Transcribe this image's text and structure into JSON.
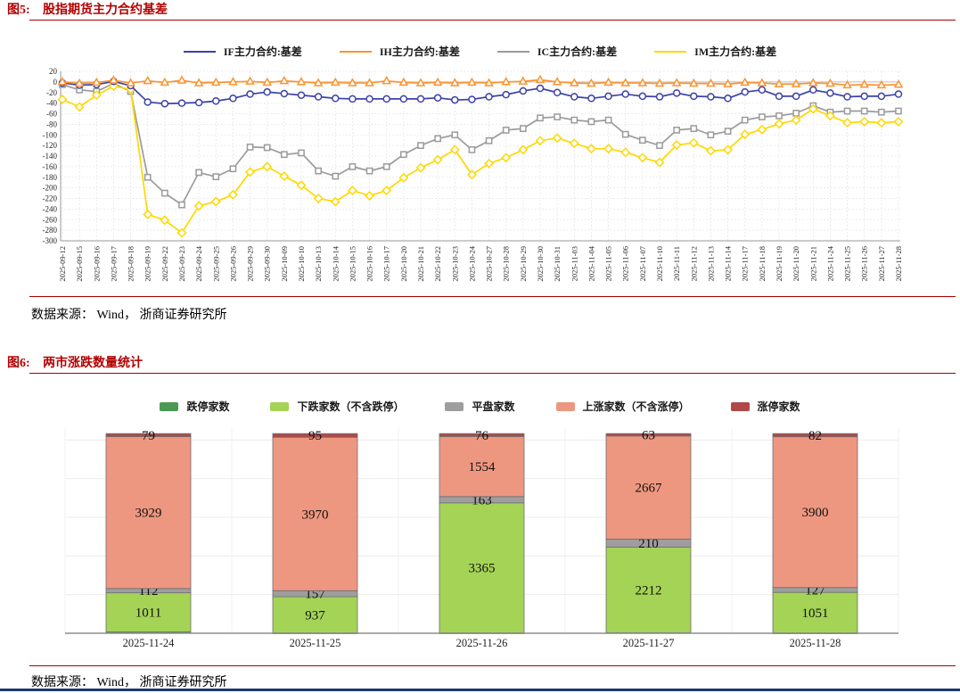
{
  "page": {
    "colors": {
      "title_red": "#b30000",
      "rule_red": "#a80000",
      "footer_navy": "#1e3a6d",
      "grid_light": "#e6e6e6",
      "axis_gray": "#9a9a9a"
    }
  },
  "figures": [
    {
      "label": "图5:",
      "title": "股指期货主力合约基差",
      "source": "数据来源： Wind， 浙商证券研究所"
    },
    {
      "label": "图6:",
      "title": "两市涨跌数量统计",
      "source": "数据来源： Wind， 浙商证券研究所"
    }
  ],
  "chart_data": [
    {
      "type": "line",
      "title": "股指期货主力合约基差",
      "legend_position": "top",
      "grid": true,
      "ylim": [
        -300,
        20
      ],
      "ytick_step": 20,
      "x": [
        "2025-09-12",
        "2025-09-15",
        "2025-09-16",
        "2025-09-17",
        "2025-09-18",
        "2025-09-19",
        "2025-09-22",
        "2025-09-23",
        "2025-09-24",
        "2025-09-25",
        "2025-09-26",
        "2025-09-29",
        "2025-09-30",
        "2025-10-09",
        "2025-10-10",
        "2025-10-13",
        "2025-10-14",
        "2025-10-15",
        "2025-10-16",
        "2025-10-17",
        "2025-10-20",
        "2025-10-21",
        "2025-10-22",
        "2025-10-23",
        "2025-10-24",
        "2025-10-27",
        "2025-10-28",
        "2025-10-29",
        "2025-10-30",
        "2025-10-31",
        "2025-11-03",
        "2025-11-04",
        "2025-11-05",
        "2025-11-06",
        "2025-11-07",
        "2025-11-10",
        "2025-11-11",
        "2025-11-12",
        "2025-11-13",
        "2025-11-14",
        "2025-11-17",
        "2025-11-18",
        "2025-11-19",
        "2025-11-20",
        "2025-11-21",
        "2025-11-24",
        "2025-11-25",
        "2025-11-26",
        "2025-11-27",
        "2025-11-28"
      ],
      "series": [
        {
          "name": "IF主力合约:基差",
          "color": "#3c42a6",
          "marker": "circle",
          "values": [
            -2,
            -6,
            -5,
            1,
            -7,
            -38,
            -41,
            -40,
            -39,
            -36,
            -31,
            -23,
            -19,
            -22,
            -25,
            -28,
            -31,
            -32,
            -32,
            -32,
            -32,
            -32,
            -30,
            -34,
            -33,
            -28,
            -24,
            -17,
            -12,
            -20,
            -28,
            -31,
            -27,
            -23,
            -27,
            -28,
            -21,
            -27,
            -28,
            -31,
            -19,
            -15,
            -27,
            -27,
            -15,
            -21,
            -28,
            -27,
            -27,
            -23
          ]
        },
        {
          "name": "IH主力合约:基差",
          "color": "#fb9431",
          "marker": "triangle",
          "values": [
            0,
            -3,
            -1,
            3,
            -2,
            2,
            -1,
            3,
            -2,
            -1,
            0,
            1,
            -1,
            2,
            0,
            -2,
            -1,
            -2,
            -2,
            2,
            -1,
            -2,
            -1,
            -2,
            -1,
            -2,
            0,
            1,
            4,
            0,
            -2,
            -3,
            -1,
            -2,
            -2,
            -3,
            -2,
            -3,
            -3,
            -4,
            -1,
            -2,
            -4,
            -4,
            -2,
            -3,
            -6,
            -5,
            -6,
            -5
          ]
        },
        {
          "name": "IC主力合约:基差",
          "color": "#9b9b9b",
          "marker": "square",
          "values": [
            -5,
            -15,
            -18,
            -3,
            -18,
            -180,
            -210,
            -232,
            -171,
            -179,
            -164,
            -123,
            -124,
            -137,
            -134,
            -168,
            -178,
            -160,
            -168,
            -160,
            -137,
            -120,
            -107,
            -100,
            -128,
            -111,
            -91,
            -88,
            -68,
            -66,
            -72,
            -75,
            -72,
            -99,
            -110,
            -120,
            -91,
            -88,
            -100,
            -93,
            -72,
            -66,
            -64,
            -59,
            -45,
            -57,
            -55,
            -55,
            -57,
            -55
          ]
        },
        {
          "name": "IM主力合约:基差",
          "color": "#ffd800",
          "marker": "diamond",
          "values": [
            -33,
            -47,
            -25,
            -8,
            -14,
            -250,
            -261,
            -285,
            -234,
            -226,
            -213,
            -170,
            -160,
            -178,
            -195,
            -220,
            -226,
            -205,
            -215,
            -205,
            -181,
            -162,
            -147,
            -128,
            -175,
            -154,
            -143,
            -128,
            -111,
            -106,
            -116,
            -126,
            -126,
            -133,
            -143,
            -152,
            -119,
            -115,
            -130,
            -128,
            -99,
            -90,
            -79,
            -72,
            -51,
            -64,
            -77,
            -75,
            -77,
            -75
          ]
        }
      ]
    },
    {
      "type": "bar",
      "subtype": "stacked",
      "title": "两市涨跌数量统计",
      "legend_position": "top",
      "ylim": [
        0,
        6000
      ],
      "gridline_step": 1000,
      "value_labels": "on-segments",
      "categories": [
        "2025-11-24",
        "2025-11-25",
        "2025-11-26",
        "2025-11-27",
        "2025-11-28"
      ],
      "series": [
        {
          "name": "跌停家数",
          "color": "#4a9a55",
          "values": [
            35,
            7,
            8,
            14,
            6
          ]
        },
        {
          "name": "下跌家数（不含跌停）",
          "color": "#a5d356",
          "values": [
            1011,
            937,
            3365,
            2212,
            1051
          ]
        },
        {
          "name": "平盘家数",
          "color": "#9e9e9e",
          "values": [
            112,
            157,
            163,
            210,
            127
          ]
        },
        {
          "name": "上涨家数（不含涨停）",
          "color": "#ee9780",
          "values": [
            3929,
            3970,
            1554,
            2667,
            3900
          ]
        },
        {
          "name": "涨停家数",
          "color": "#b04848",
          "values": [
            79,
            95,
            76,
            63,
            82
          ]
        }
      ]
    }
  ]
}
